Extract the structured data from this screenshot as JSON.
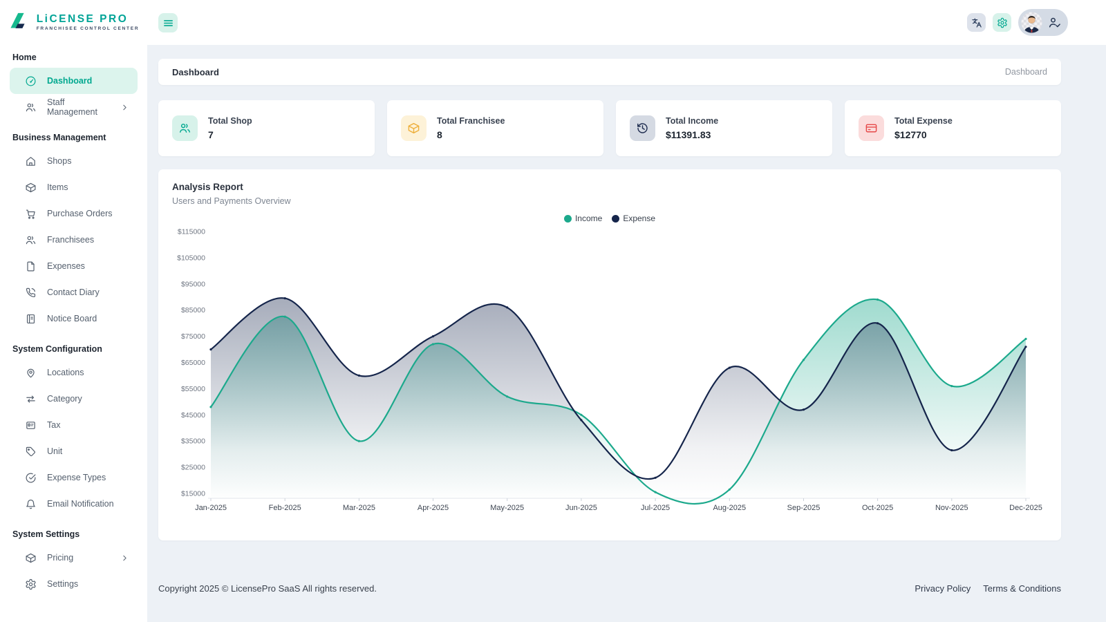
{
  "brand": {
    "name": "LiCENSE PRO",
    "tagline": "FRANCHISEE CONTROL CENTER",
    "logo_icon": "logo-mark",
    "colors": {
      "green": "#16b98e",
      "navy": "#152a4e",
      "teal_text": "#00a396"
    }
  },
  "header": {
    "menu_icon": "hamburger-menu",
    "actions": [
      {
        "icon": "translate",
        "bg": "#dde2eb",
        "color": "#2b3d5c"
      },
      {
        "icon": "settings-gear",
        "bg": "#d7f2ea",
        "color": "#00a88f"
      },
      {
        "icon": "avatar-with-user-check",
        "bg": "#d4dbe5",
        "color": "#263652"
      }
    ]
  },
  "sidebar": {
    "sections": [
      {
        "title": "Home",
        "items": [
          {
            "label": "Dashboard",
            "icon": "gauge",
            "active": true,
            "chevron": false
          },
          {
            "label": "Staff Management",
            "icon": "users",
            "active": false,
            "chevron": true
          }
        ]
      },
      {
        "title": "Business Management",
        "items": [
          {
            "label": "Shops",
            "icon": "home",
            "active": false,
            "chevron": false
          },
          {
            "label": "Items",
            "icon": "package",
            "active": false,
            "chevron": false
          },
          {
            "label": "Purchase Orders",
            "icon": "cart",
            "active": false,
            "chevron": false
          },
          {
            "label": "Franchisees",
            "icon": "users",
            "active": false,
            "chevron": false
          },
          {
            "label": "Expenses",
            "icon": "file",
            "active": false,
            "chevron": false
          },
          {
            "label": "Contact Diary",
            "icon": "phone",
            "active": false,
            "chevron": false
          },
          {
            "label": "Notice Board",
            "icon": "board",
            "active": false,
            "chevron": false
          }
        ]
      },
      {
        "title": "System Configuration",
        "items": [
          {
            "label": "Locations",
            "icon": "pin",
            "active": false,
            "chevron": false
          },
          {
            "label": "Category",
            "icon": "sliders",
            "active": false,
            "chevron": false
          },
          {
            "label": "Tax",
            "icon": "card",
            "active": false,
            "chevron": false
          },
          {
            "label": "Unit",
            "icon": "tag",
            "active": false,
            "chevron": false
          },
          {
            "label": "Expense Types",
            "icon": "check-circle",
            "active": false,
            "chevron": false
          },
          {
            "label": "Email Notification",
            "icon": "bell",
            "active": false,
            "chevron": false
          }
        ]
      },
      {
        "title": "System Settings",
        "items": [
          {
            "label": "Pricing",
            "icon": "package",
            "active": false,
            "chevron": true
          },
          {
            "label": "Settings",
            "icon": "gear",
            "active": false,
            "chevron": false
          }
        ]
      }
    ]
  },
  "breadcrumb": {
    "title": "Dashboard",
    "crumb": "Dashboard"
  },
  "stats": [
    {
      "label": "Total Shop",
      "value": "7",
      "icon": "users",
      "color": "#00a88f",
      "bg": "#d7f2ea"
    },
    {
      "label": "Total Franchisee",
      "value": "8",
      "icon": "package",
      "color": "#eeb03d",
      "bg": "#fdf2d8"
    },
    {
      "label": "Total Income",
      "value": "$11391.83",
      "icon": "history",
      "color": "#1e2c4f",
      "bg": "#d5dae3"
    },
    {
      "label": "Total Expense",
      "value": "$12770",
      "icon": "credit-card",
      "color": "#e64848",
      "bg": "#fbdcdc"
    }
  ],
  "analysis": {
    "title": "Analysis Report",
    "subtitle": "Users and Payments Overview"
  },
  "chart_data": {
    "type": "area",
    "title": "Analysis Report",
    "subtitle": "Users and Payments Overview",
    "x": [
      "Jan-2025",
      "Feb-2025",
      "Mar-2025",
      "Apr-2025",
      "May-2025",
      "Jun-2025",
      "Jul-2025",
      "Aug-2025",
      "Sep-2025",
      "Oct-2025",
      "Nov-2025",
      "Dec-2025"
    ],
    "series": [
      {
        "name": "Income",
        "color": "#1ca98c",
        "values": [
          48000,
          82500,
          35000,
          72000,
          52000,
          45000,
          15500,
          16500,
          66000,
          89000,
          56000,
          74000
        ]
      },
      {
        "name": "Expense",
        "color": "#15254b",
        "values": [
          70000,
          89500,
          60000,
          75000,
          86000,
          43000,
          21000,
          63000,
          47000,
          80000,
          31500,
          71000
        ]
      }
    ],
    "y_ticks": [
      "$115000",
      "$105000",
      "$95000",
      "$85000",
      "$75000",
      "$65000",
      "$55000",
      "$45000",
      "$35000",
      "$25000",
      "$15000"
    ],
    "ylim": [
      15000,
      115000
    ],
    "grid": false,
    "legend_position": "top",
    "curve": "smooth"
  },
  "footer": {
    "copyright": "Copyright 2025 © LicensePro SaaS All rights reserved.",
    "links": [
      "Privacy Policy",
      "Terms & Conditions"
    ]
  }
}
